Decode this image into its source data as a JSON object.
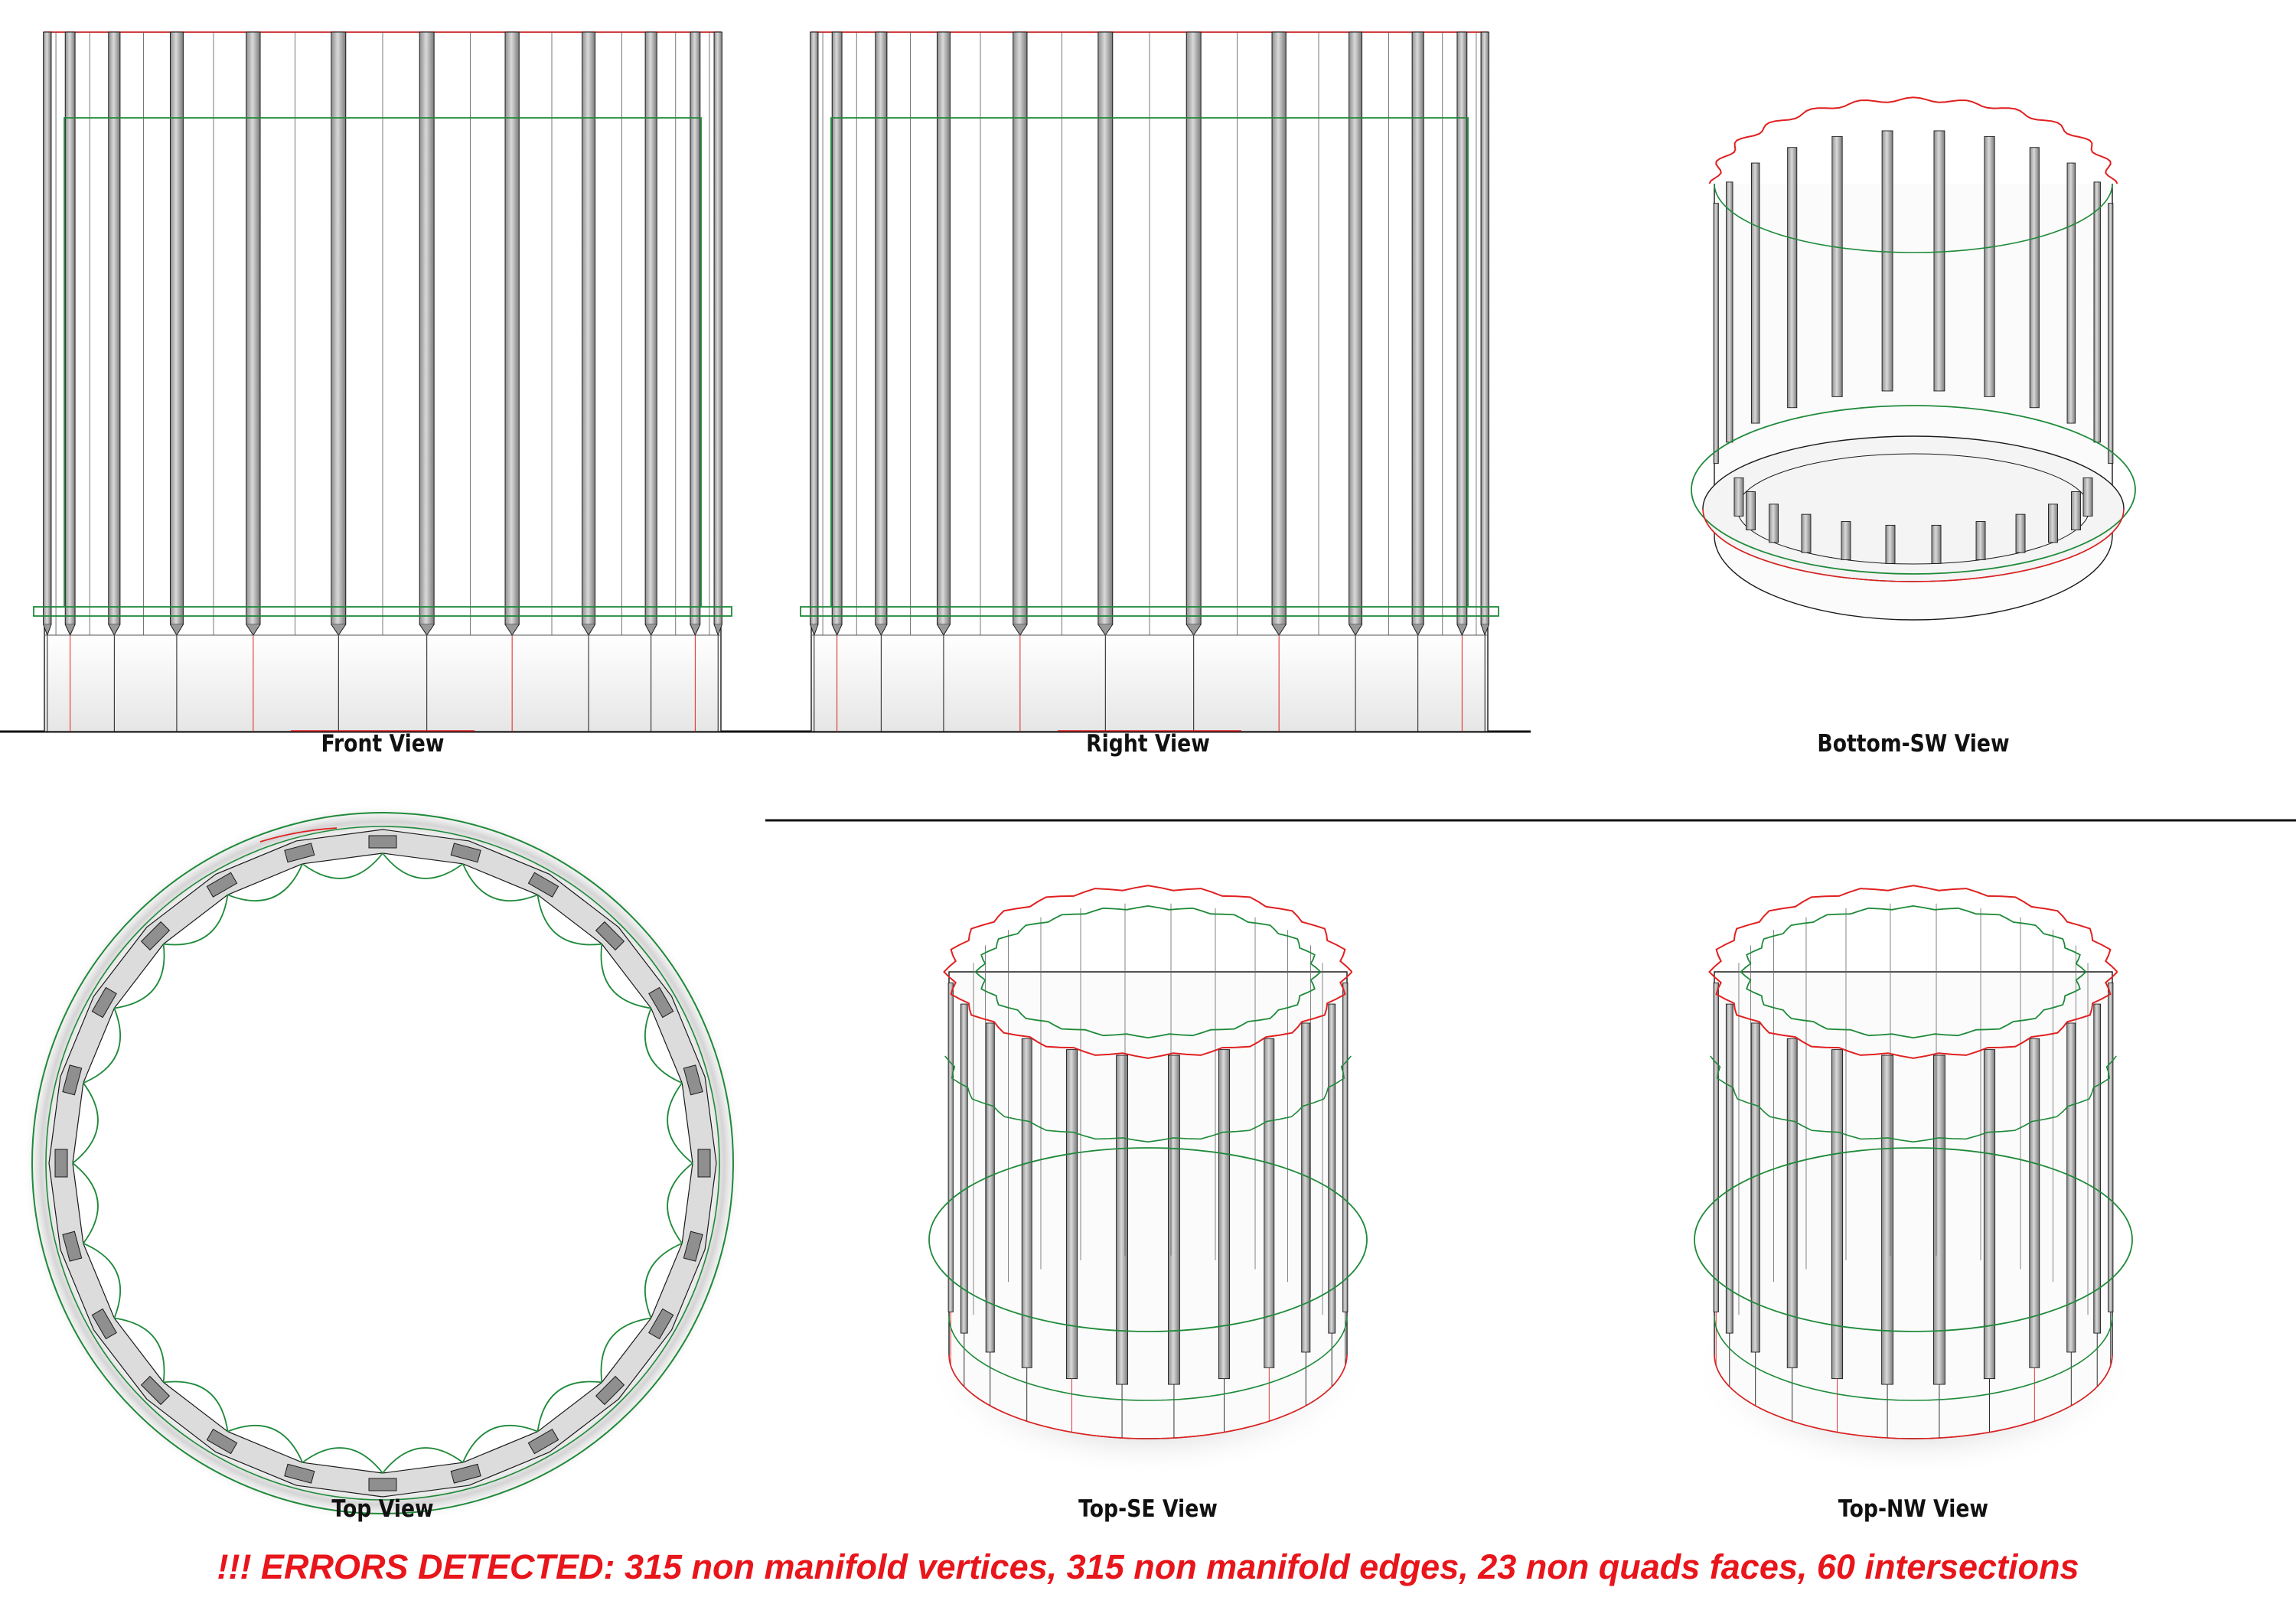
{
  "views": {
    "front": {
      "label": "Front View"
    },
    "right": {
      "label": "Right View"
    },
    "bottom_sw": {
      "label": "Bottom-SW View"
    },
    "top": {
      "label": "Top View"
    },
    "top_se": {
      "label": "Top-SE View"
    },
    "top_nw": {
      "label": "Top-NW View"
    }
  },
  "error_banner": {
    "text": "!!! ERRORS DETECTED: 315 non manifold vertices, 315 non manifold edges, 23 non quads faces, 60 intersections"
  },
  "colors": {
    "wire": "#1a1a1a",
    "error_edge": "#e02020",
    "guide_edge": "#1f8a3a",
    "shade": "#bdbdbd",
    "banner": "#e8151b"
  }
}
